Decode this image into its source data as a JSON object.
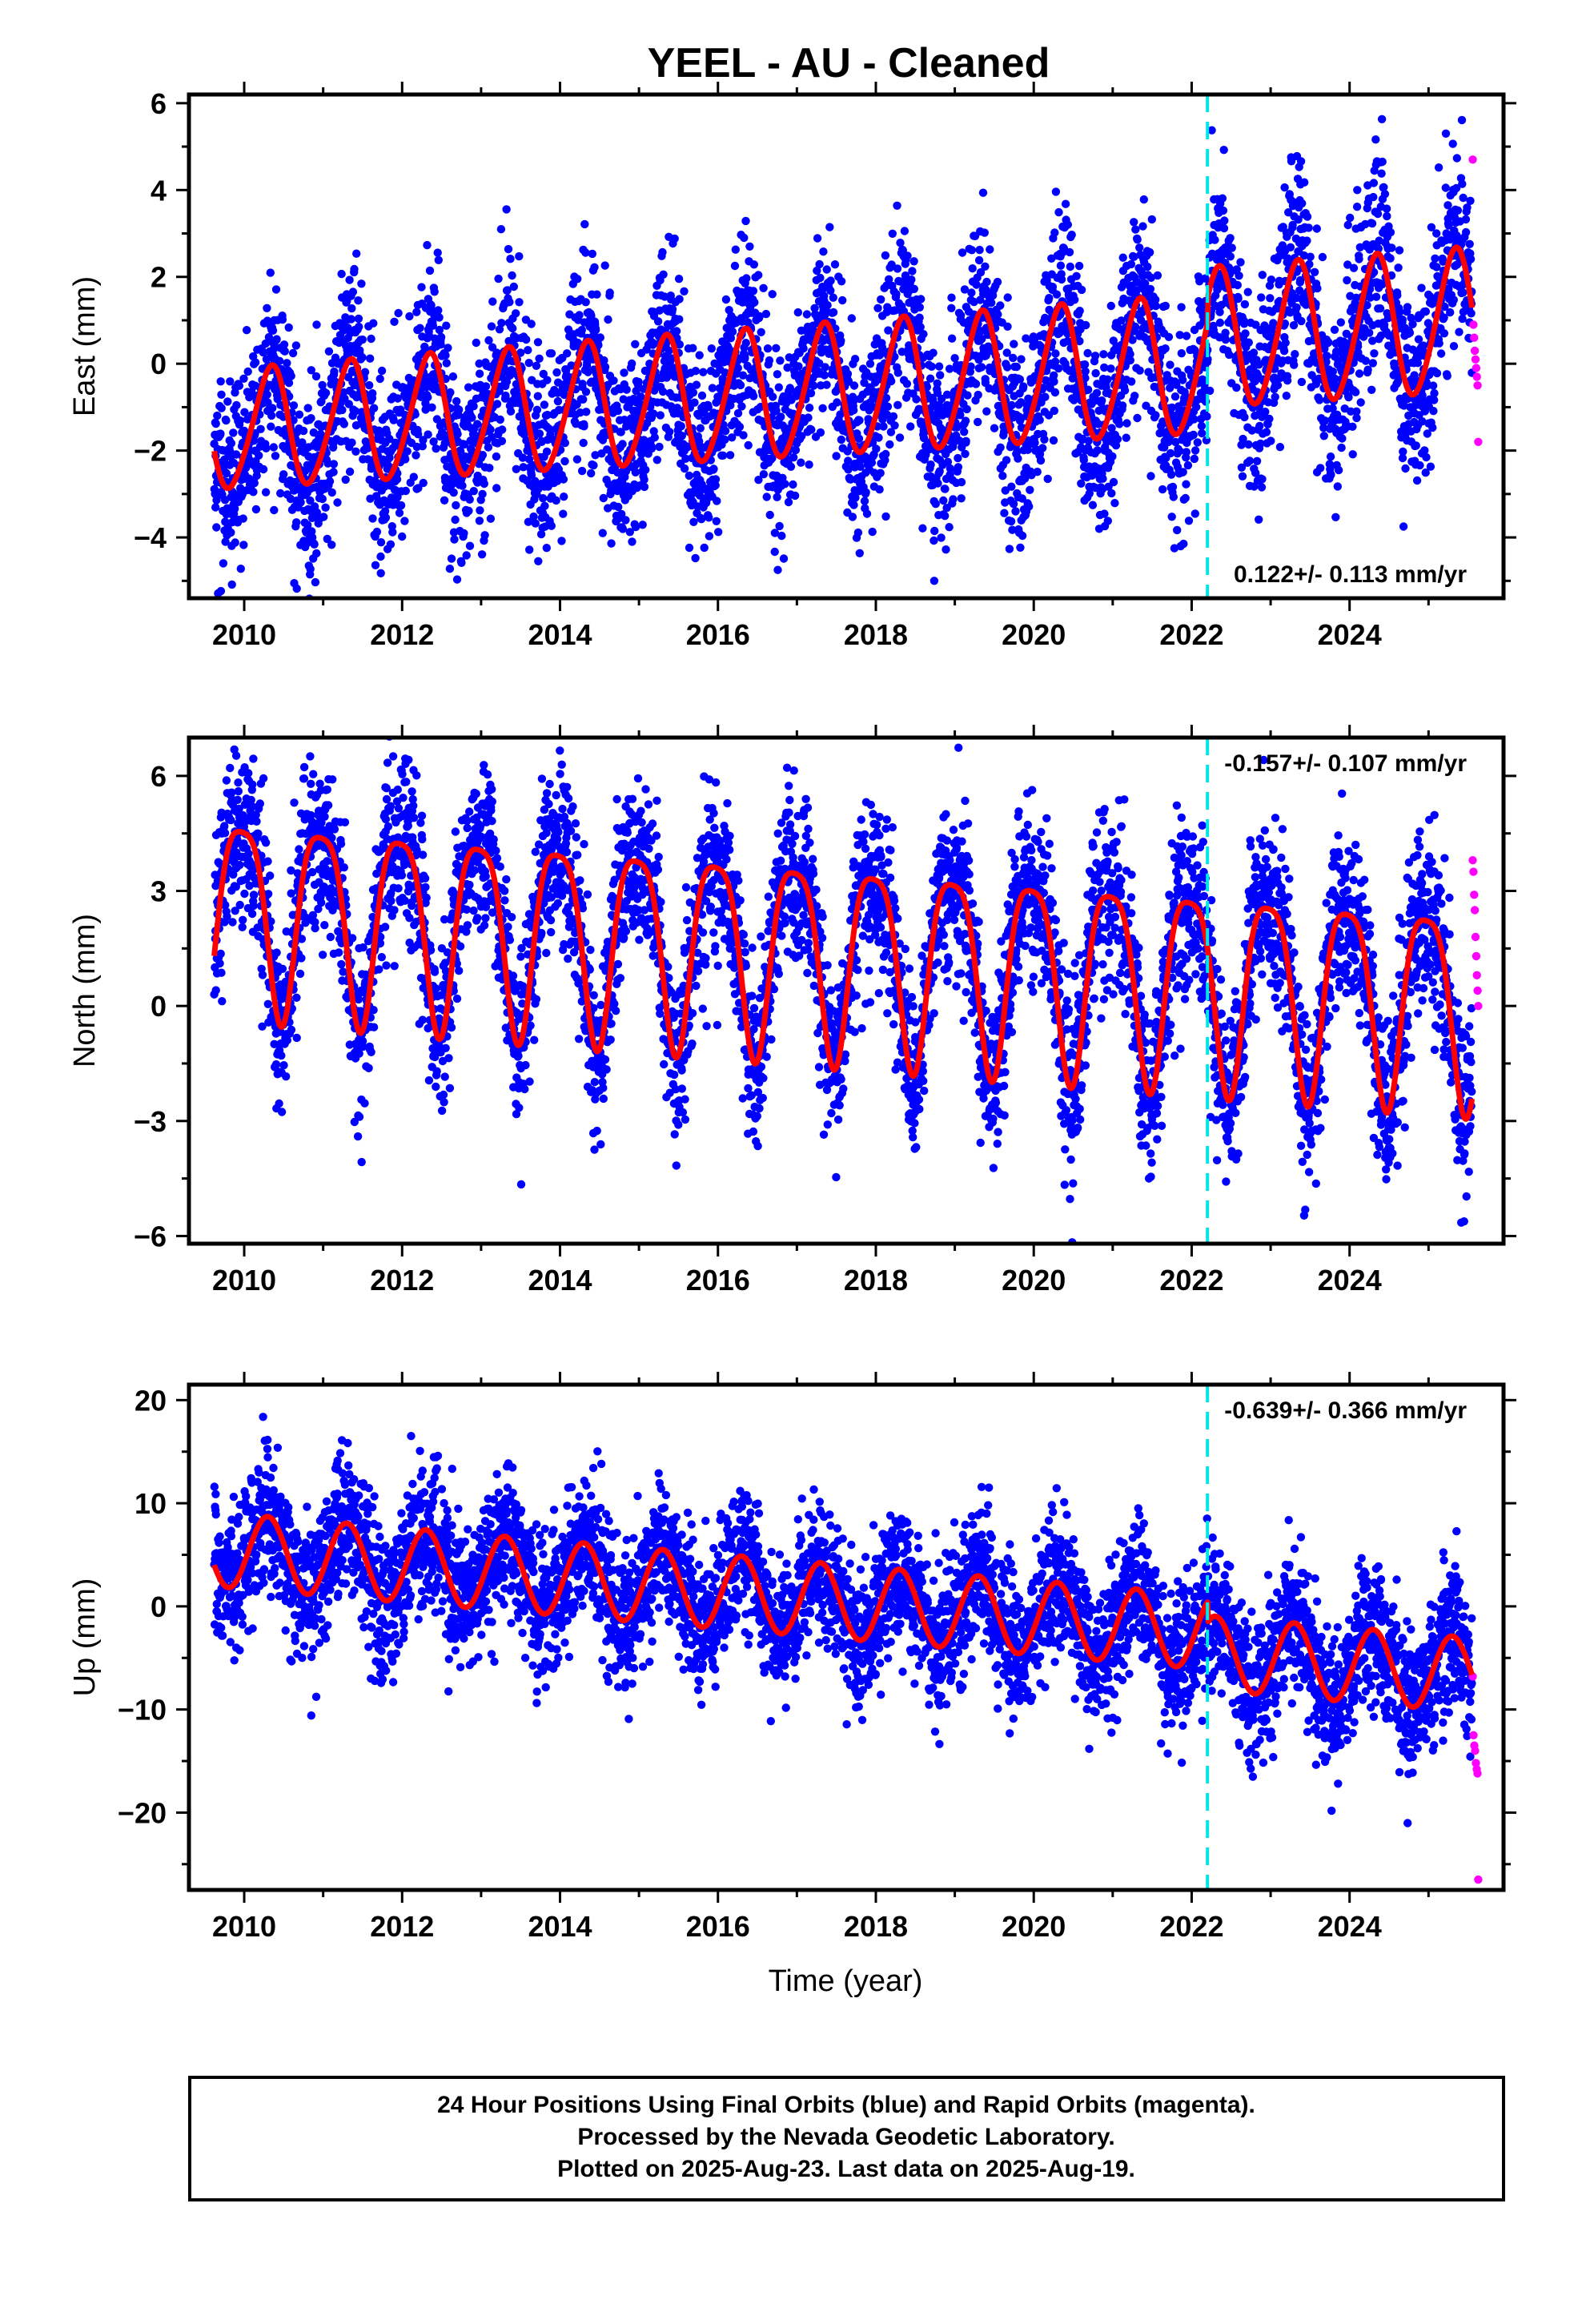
{
  "title": "YEEL  - AU - Cleaned",
  "footer": {
    "line1": "24 Hour Positions Using Final Orbits (blue) and Rapid Orbits (magenta).",
    "line2": "Processed by the Nevada Geodetic Laboratory.",
    "line3": "Plotted on 2025-Aug-23. Last data on 2025-Aug-19."
  },
  "colors": {
    "final_orbits": "#0000ff",
    "rapid_orbits": "#ff00ff",
    "model_fit": "#ff0000",
    "equipment_change": "#00e5e5"
  },
  "chart_data": [
    {
      "type": "scatter",
      "ylabel": "East (mm)",
      "xlabel": "",
      "xlim": [
        2009.3,
        2025.95
      ],
      "ylim": [
        -5.4,
        6.2
      ],
      "xticks": [
        2010,
        2012,
        2014,
        2016,
        2018,
        2020,
        2022,
        2024
      ],
      "yticks": [
        -4,
        -2,
        0,
        2,
        4,
        6
      ],
      "tick_labels": [
        "−4",
        "−2",
        "0",
        "2",
        "4",
        "6"
      ],
      "rate_label": "0.122+/- 0.113 mm/yr",
      "rate_position": "bottom-right",
      "equipment_change_year": 2022.2,
      "final_data_range": [
        2009.62,
        2025.55
      ],
      "rapid_data_range": [
        2025.56,
        2025.63
      ],
      "model": {
        "offset": -0.6,
        "rate": 0.122,
        "ref_year": 2017.5,
        "annual_amp_start": 1.35,
        "annual_amp_end": 1.65,
        "annual_phase": 0.08,
        "semiannual_amp": 0.15,
        "semiannual_phase": 0.3,
        "step_after_change": 0.6
      },
      "scatter_sigma": 1.05,
      "rapid_points": [
        4.7,
        0.9,
        0.6,
        0.3,
        0.1,
        -0.1,
        -0.3,
        -0.5,
        -1.8
      ]
    },
    {
      "type": "scatter",
      "ylabel": "North (mm)",
      "xlabel": "",
      "xlim": [
        2009.3,
        2025.95
      ],
      "ylim": [
        -6.2,
        7.0
      ],
      "xticks": [
        2010,
        2012,
        2014,
        2016,
        2018,
        2020,
        2022,
        2024
      ],
      "yticks": [
        -6,
        -3,
        0,
        3,
        6
      ],
      "tick_labels": [
        "−6",
        "−3",
        "0",
        "3",
        "6"
      ],
      "rate_label": "-0.157+/- 0.107 mm/yr",
      "rate_position": "top-right",
      "equipment_change_year": 2022.2,
      "final_data_range": [
        2009.62,
        2025.55
      ],
      "rapid_data_range": [
        2025.56,
        2025.63
      ],
      "model": {
        "offset": 1.4,
        "rate": -0.157,
        "ref_year": 2017.5,
        "annual_amp_start": 2.5,
        "annual_amp_end": 2.55,
        "annual_phase": 0.72,
        "semiannual_amp": 0.55,
        "semiannual_phase": 0.6,
        "step_after_change": 0.0
      },
      "scatter_sigma": 1.1,
      "rapid_points": [
        3.8,
        3.5,
        2.9,
        2.5,
        1.8,
        1.3,
        0.8,
        0.4,
        0.0
      ]
    },
    {
      "type": "scatter",
      "ylabel": "Up (mm)",
      "xlabel": "Time (year)",
      "xlim": [
        2009.3,
        2025.95
      ],
      "ylim": [
        -27.5,
        21.5
      ],
      "xticks": [
        2010,
        2012,
        2014,
        2016,
        2018,
        2020,
        2022,
        2024
      ],
      "yticks": [
        -20,
        -10,
        0,
        10,
        20
      ],
      "tick_labels": [
        "−20",
        "−10",
        "0",
        "10",
        "20"
      ],
      "rate_label": "-0.639+/- 0.366 mm/yr",
      "rate_position": "top-right",
      "equipment_change_year": 2022.2,
      "final_data_range": [
        2009.62,
        2025.55
      ],
      "rapid_data_range": [
        2025.56,
        2025.63
      ],
      "model": {
        "offset": 0.5,
        "rate": -0.639,
        "ref_year": 2017.5,
        "annual_amp_start": 3.6,
        "annual_amp_end": 3.6,
        "annual_phase": 0.05,
        "semiannual_amp": 0.0,
        "semiannual_phase": 0.0,
        "step_after_change": -2.0
      },
      "scatter_sigma": 3.4,
      "rapid_points": [
        -6.8,
        -12.5,
        -13.5,
        -14.0,
        -15.2,
        -15.8,
        -16.2,
        -26.5
      ]
    }
  ]
}
